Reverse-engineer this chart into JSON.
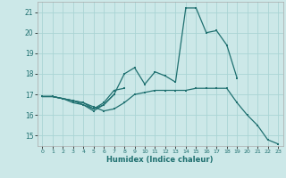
{
  "xlabel": "Humidex (Indice chaleur)",
  "xlim": [
    -0.5,
    23.5
  ],
  "ylim": [
    14.5,
    21.5
  ],
  "yticks": [
    15,
    16,
    17,
    18,
    19,
    20,
    21
  ],
  "xticks": [
    0,
    1,
    2,
    3,
    4,
    5,
    6,
    7,
    8,
    9,
    10,
    11,
    12,
    13,
    14,
    15,
    16,
    17,
    18,
    19,
    20,
    21,
    22,
    23
  ],
  "bg_color": "#cce8e8",
  "grid_color": "#aad4d4",
  "line_color": "#1f7070",
  "lines": [
    {
      "x": [
        0,
        1,
        2,
        3,
        4,
        5,
        6,
        7,
        8,
        9,
        10,
        11,
        12,
        13,
        14,
        15,
        16,
        17,
        18,
        19,
        20,
        21,
        22,
        23
      ],
      "y": [
        16.9,
        16.9,
        16.8,
        16.7,
        16.6,
        16.4,
        16.2,
        16.3,
        16.6,
        17.0,
        17.1,
        17.2,
        17.2,
        17.2,
        17.2,
        17.3,
        17.3,
        17.3,
        17.3,
        16.6,
        16.0,
        15.5,
        14.8,
        14.6
      ]
    },
    {
      "x": [
        0,
        1,
        2,
        3,
        4,
        5,
        6,
        7,
        8,
        9,
        10,
        11,
        12,
        13,
        14,
        15,
        16,
        17,
        18,
        19
      ],
      "y": [
        16.9,
        16.9,
        16.8,
        16.7,
        16.5,
        16.2,
        16.5,
        17.0,
        18.0,
        18.3,
        17.5,
        18.1,
        17.9,
        17.6,
        21.2,
        21.2,
        20.0,
        20.1,
        19.4,
        17.8
      ]
    },
    {
      "x": [
        0,
        1,
        2,
        3,
        4,
        5,
        6,
        7,
        8
      ],
      "y": [
        16.9,
        16.9,
        16.8,
        16.6,
        16.5,
        16.3,
        16.6,
        17.2,
        17.3
      ]
    },
    {
      "x": [
        0,
        1,
        2,
        3,
        4,
        5,
        6,
        7
      ],
      "y": [
        16.9,
        16.9,
        16.8,
        16.7,
        16.6,
        16.3,
        16.5,
        17.0
      ]
    }
  ]
}
